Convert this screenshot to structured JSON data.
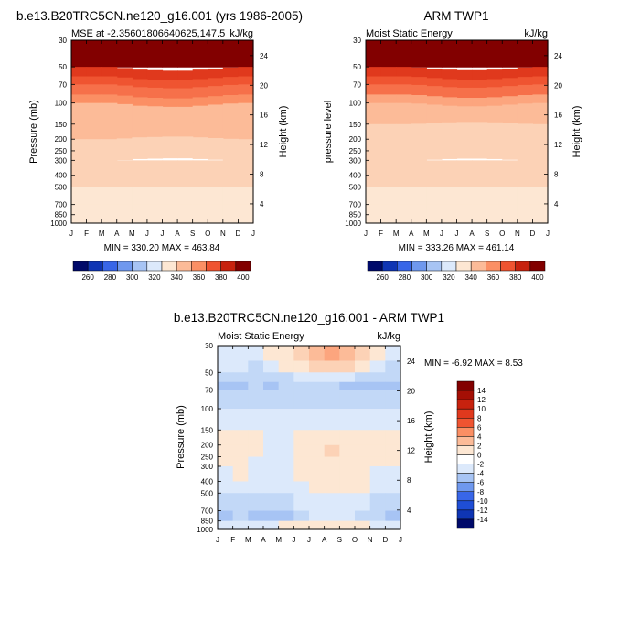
{
  "titles": {
    "left": "b.e13.B20TRC5CN.ne120_g16.001 (yrs 1986-2005)",
    "right": "ARM TWP1",
    "bottom": "b.e13.B20TRC5CN.ne120_g16.001 - ARM TWP1"
  },
  "colors": {
    "warm": [
      "#fde7d3",
      "#fcd2b6",
      "#fcbb98",
      "#fca57e",
      "#fb8f64",
      "#f6704a",
      "#ef5431",
      "#e0391d",
      "#c7220e",
      "#a40f05",
      "#820000"
    ],
    "cool": [
      "#dce9fb",
      "#c2d8f7",
      "#a7c4f4",
      "#8bb0f1",
      "#6f98ee",
      "#537feb",
      "#3866e8",
      "#1f4ed6",
      "#0f35b4",
      "#061f8c",
      "#000a6a"
    ]
  },
  "chart_data": [
    {
      "type": "heatmap",
      "id": "model",
      "title": "b.e13.B20TRC5CN.ne120_g16.001 (yrs 1986-2005)",
      "left_label": "MSE at -2.35601806640625,147.5",
      "right_label": "kJ/kg",
      "ylabel": "Pressure (mb)",
      "y2label": "Height (km)",
      "x": [
        "J",
        "F",
        "M",
        "A",
        "M",
        "J",
        "J",
        "A",
        "S",
        "O",
        "N",
        "D",
        "J"
      ],
      "y_ticks": [
        "30",
        "50",
        "70",
        "100",
        "150",
        "200",
        "250",
        "300",
        "400",
        "500",
        "700",
        "850",
        "1000"
      ],
      "y2_ticks": [
        "24",
        "20",
        "16",
        "12",
        "8",
        "4"
      ],
      "stats": "MIN = 330.20  MAX = 463.84",
      "profile": [
        463.8,
        404,
        392,
        382,
        370,
        350,
        350,
        347,
        345,
        342,
        341,
        339,
        335,
        330.2
      ],
      "dip": [
        0,
        0,
        0,
        0,
        2,
        3,
        3,
        4,
        3,
        2,
        1,
        0,
        0
      ],
      "lbar": {
        "labels": [
          "260",
          "280",
          "300",
          "320",
          "340",
          "360",
          "380",
          "400"
        ],
        "colors": [
          "#000a6a",
          "#0f35b4",
          "#3866e8",
          "#6f98ee",
          "#a7c4f4",
          "#dce9fb",
          "#fde7d3",
          "#fcbb98",
          "#fb8f64",
          "#ef5431",
          "#c7220e",
          "#820000"
        ]
      }
    },
    {
      "type": "heatmap",
      "id": "obs",
      "title": "ARM TWP1",
      "left_label": "Moist Static Energy",
      "right_label": "kJ/kg",
      "ylabel": "pressure level",
      "y2label": "Height (km)",
      "x": [
        "J",
        "F",
        "M",
        "A",
        "M",
        "J",
        "J",
        "A",
        "S",
        "O",
        "N",
        "D",
        "J"
      ],
      "y_ticks": [
        "30",
        "50",
        "70",
        "100",
        "150",
        "200",
        "250",
        "300",
        "400",
        "500",
        "700",
        "850",
        "1000"
      ],
      "y2_ticks": [
        "24",
        "20",
        "16",
        "12",
        "8",
        "4"
      ],
      "stats": "MIN = 333.26  MAX = 461.14",
      "profile": [
        461.1,
        402,
        390,
        380,
        368,
        350,
        349,
        346,
        344,
        342,
        341,
        339,
        336,
        333.3
      ],
      "dip": [
        0,
        0,
        0,
        0,
        1,
        2,
        3,
        3,
        3,
        2,
        1,
        0,
        0
      ],
      "lbar": {
        "labels": [
          "260",
          "280",
          "300",
          "320",
          "340",
          "360",
          "380",
          "400"
        ],
        "colors": [
          "#000a6a",
          "#0f35b4",
          "#3866e8",
          "#6f98ee",
          "#a7c4f4",
          "#dce9fb",
          "#fde7d3",
          "#fcbb98",
          "#fb8f64",
          "#ef5431",
          "#c7220e",
          "#820000"
        ]
      }
    },
    {
      "type": "heatmap",
      "id": "diff",
      "title": "b.e13.B20TRC5CN.ne120_g16.001 - ARM TWP1",
      "left_label": "Moist Static Energy",
      "right_label": "kJ/kg",
      "ylabel": "Pressure (mb)",
      "y2label": "Height (km)",
      "x": [
        "J",
        "F",
        "M",
        "A",
        "M",
        "J",
        "J",
        "A",
        "S",
        "O",
        "N",
        "D",
        "J"
      ],
      "y_ticks": [
        "30",
        "50",
        "70",
        "100",
        "150",
        "200",
        "250",
        "300",
        "400",
        "500",
        "700",
        "850",
        "1000"
      ],
      "y2_ticks": [
        "24",
        "20",
        "16",
        "12",
        "8",
        "4"
      ],
      "stats": "MIN =  -6.92  MAX =   8.53",
      "grid": [
        [
          -1,
          -1,
          -1,
          0,
          1,
          2,
          4,
          6,
          5,
          2,
          0,
          -1,
          -1
        ],
        [
          -1,
          -1,
          -2,
          -1,
          0,
          1,
          2,
          3,
          2,
          1,
          -1,
          -2,
          -1
        ],
        [
          -2,
          -2,
          -3,
          -3,
          -2,
          -1,
          -1,
          -1,
          -1,
          -2,
          -3,
          -2,
          -2
        ],
        [
          -4,
          -4,
          -3,
          -5,
          -3,
          -3,
          -3,
          -3,
          -4,
          -4,
          -4,
          -4,
          -4
        ],
        [
          -2,
          -3,
          -3,
          -3,
          -3,
          -2,
          -2,
          -2,
          -2,
          -2,
          -3,
          -3,
          -2
        ],
        [
          -1,
          -1,
          -1,
          -1,
          -1,
          -1,
          -1,
          -1,
          -1,
          -1,
          -1,
          -1,
          -1
        ],
        [
          0,
          0,
          0,
          -1,
          -1,
          0,
          1,
          1,
          1,
          1,
          0,
          0,
          0
        ],
        [
          1,
          1,
          0,
          -1,
          -1,
          0,
          1,
          3,
          1,
          1,
          0,
          1,
          1
        ],
        [
          0,
          0,
          -1,
          -1,
          -1,
          0,
          1,
          1,
          1,
          1,
          0,
          0,
          0
        ],
        [
          -1,
          0,
          -1,
          -1,
          -1,
          0,
          1,
          1,
          1,
          0,
          -1,
          -1,
          -1
        ],
        [
          -1,
          -1,
          -1,
          -1,
          -1,
          -1,
          0,
          0,
          0,
          0,
          -1,
          -1,
          -1
        ],
        [
          -3,
          -3,
          -3,
          -3,
          -2,
          -1,
          -1,
          -1,
          -1,
          -1,
          -2,
          -3,
          -3
        ],
        [
          -4,
          -3,
          -4,
          -5,
          -4,
          -2,
          -1,
          -1,
          -1,
          -2,
          -3,
          -5,
          -3
        ],
        [
          -1,
          -1,
          -1,
          -1,
          0,
          1,
          1,
          1,
          0,
          0,
          -1,
          -1,
          -1
        ]
      ],
      "lbar": {
        "labels": [
          "14",
          "12",
          "10",
          "8",
          "6",
          "4",
          "2",
          "0",
          "-2",
          "-4",
          "-6",
          "-8",
          "-10",
          "-12",
          "-14"
        ],
        "colors": [
          "#820000",
          "#a40f05",
          "#c7220e",
          "#e0391d",
          "#ef5431",
          "#fb8f64",
          "#fcbb98",
          "#fde7d3",
          "#ffffff",
          "#dce9fb",
          "#a7c4f4",
          "#6f98ee",
          "#3866e8",
          "#1f4ed6",
          "#0f35b4",
          "#000a6a"
        ]
      }
    }
  ]
}
